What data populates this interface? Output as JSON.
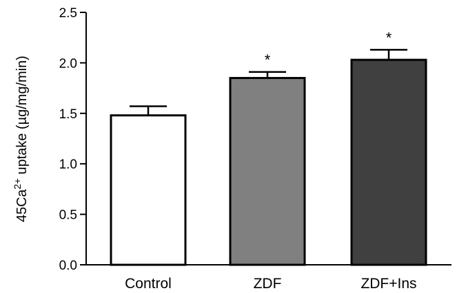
{
  "chart_data": {
    "type": "bar",
    "categories": [
      "Control",
      "ZDF",
      "ZDF+Ins"
    ],
    "values": [
      1.48,
      1.85,
      2.03
    ],
    "errors": [
      0.09,
      0.06,
      0.1
    ],
    "significance": [
      "",
      "*",
      "*"
    ],
    "colors": [
      "#ffffff",
      "#808080",
      "#404040"
    ],
    "ylabel": {
      "main": "45Ca",
      "superscript": "2+",
      "rest": " uptake (µg/mg/min)"
    },
    "xlabel": "",
    "ylim": [
      0,
      2.5
    ],
    "yticks": [
      "0.0",
      "0.5",
      "1.0",
      "1.5",
      "2.0",
      "2.5"
    ],
    "grid": false
  }
}
